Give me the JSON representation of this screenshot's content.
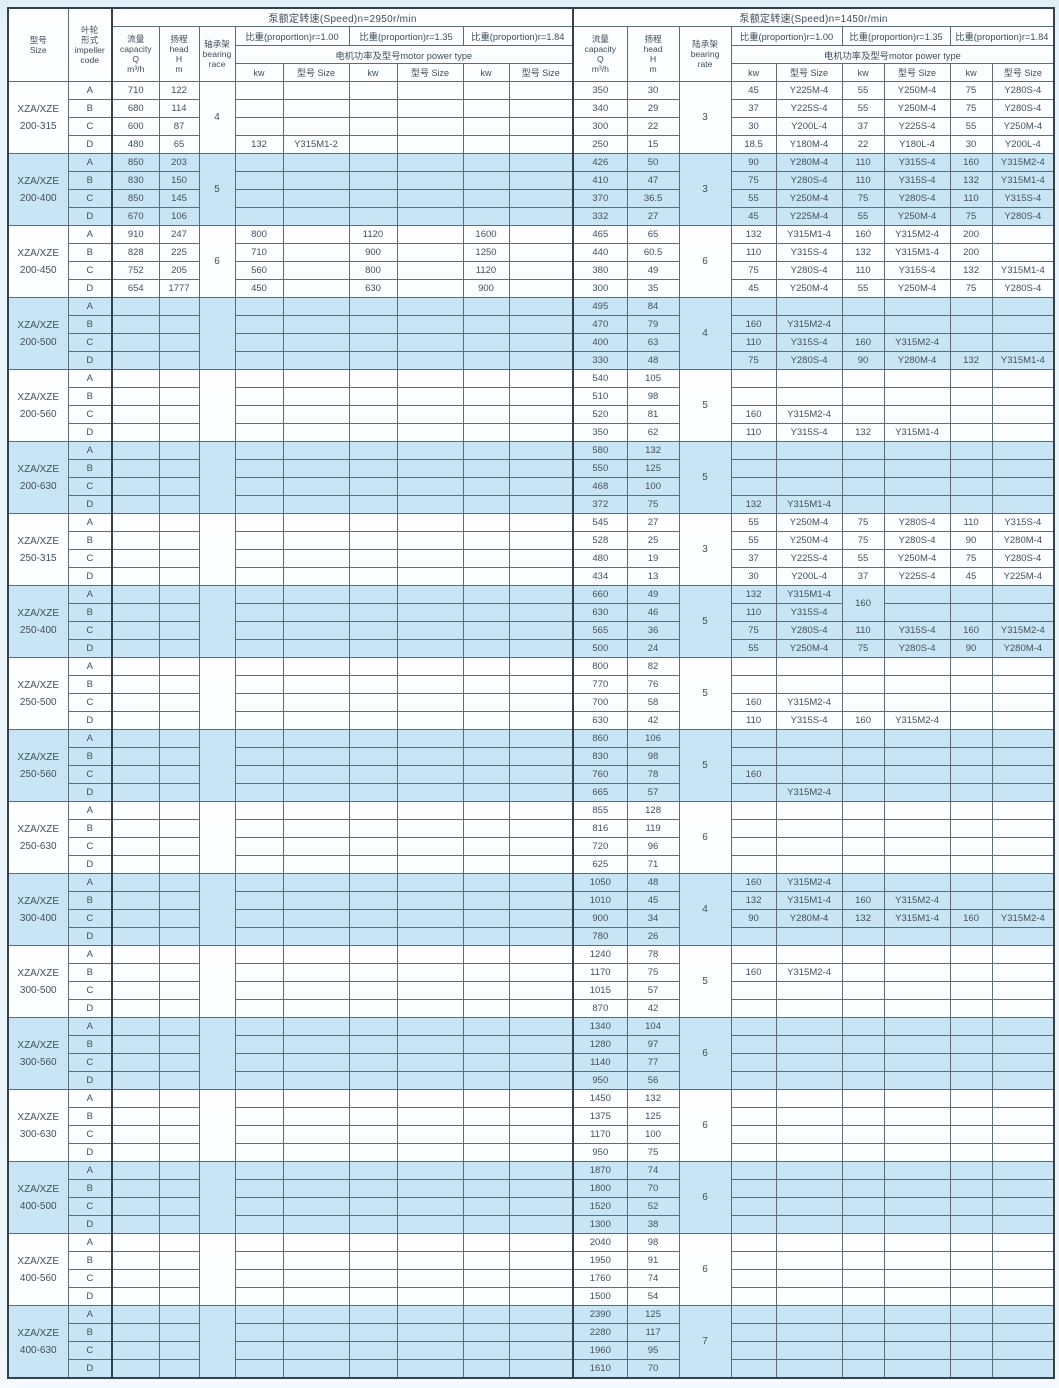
{
  "table": {
    "header": {
      "size_label": "型号\nSize",
      "impeller_label": "叶轮\n形式\nimpeller\ncode",
      "sections": [
        {
          "speed_title": "泵额定转速(Speed)n=2950r/min",
          "capacity_label": "流量\ncapacity\nQ\nm³/h",
          "head_label": "扬程\nhead\nH\nm",
          "bearing_label": "轴承架\nbearing\nrace",
          "proportions": [
            "比重(proportion)r=1.00",
            "比重(proportion)r=1.35",
            "比重(proportion)r=1.84"
          ],
          "motor_label": "电机功率及型号motor power type",
          "kw_label": "kw",
          "model_label": "型号 Size"
        },
        {
          "speed_title": "泵额定转速(Speed)n=1450r/min",
          "capacity_label": "流量\ncapacity\nQ\nm³/h",
          "head_label": "扬程\nhead\nH\nm",
          "bearing_label": "陆承架\nbearing\nrate",
          "proportions": [
            "比重(proportion)r=1.00",
            "比重(proportion)r=1.35",
            "比重(proportion)r=1.84"
          ],
          "motor_label": "电机功率及型号motor power type",
          "kw_label": "kw",
          "model_label": "型号 Size"
        }
      ]
    },
    "groups": [
      {
        "size": "XZA/XZE\n200-315",
        "hl": false,
        "lb": "4",
        "rb": "3",
        "rows": [
          [
            "A",
            "710",
            "122",
            [],
            "350",
            "30",
            [
              "45",
              "Y225M-4",
              "55",
              "Y250M-4",
              "75",
              "Y280S-4"
            ]
          ],
          [
            "B",
            "680",
            "114",
            [],
            "340",
            "29",
            [
              "37",
              "Y225S-4",
              "55",
              "Y250M-4",
              "75",
              "Y280S-4"
            ]
          ],
          [
            "C",
            "600",
            "87",
            [],
            "300",
            "22",
            [
              "30",
              "Y200L-4",
              "37",
              "Y225S-4",
              "55",
              "Y250M-4"
            ]
          ],
          [
            "D",
            "480",
            "65",
            [
              "132",
              "Y315M1-2",
              "",
              "",
              "",
              ""
            ],
            "250",
            "15",
            [
              "18.5",
              "Y180M-4",
              "22",
              "Y180L-4",
              "30",
              "Y200L-4"
            ]
          ]
        ]
      },
      {
        "size": "XZA/XZE\n200-400",
        "hl": true,
        "lb": "5",
        "rb": "3",
        "rows": [
          [
            "A",
            "850",
            "203",
            [],
            "426",
            "50",
            [
              "90",
              "Y280M-4",
              "110",
              "Y315S-4",
              "160",
              "Y315M2-4"
            ]
          ],
          [
            "B",
            "830",
            "150",
            [],
            "410",
            "47",
            [
              "75",
              "Y280S-4",
              "110",
              "Y315S-4",
              "132",
              "Y315M1-4"
            ]
          ],
          [
            "C",
            "850",
            "145",
            [],
            "370",
            "36.5",
            [
              "55",
              "Y250M-4",
              "75",
              "Y280S-4",
              "110",
              "Y315S-4"
            ]
          ],
          [
            "D",
            "670",
            "106",
            [],
            "332",
            "27",
            [
              "45",
              "Y225M-4",
              "55",
              "Y250M-4",
              "75",
              "Y280S-4"
            ]
          ]
        ]
      },
      {
        "size": "XZA/XZE\n200-450",
        "hl": false,
        "lb": "6",
        "rb": "6",
        "rows": [
          [
            "A",
            "910",
            "247",
            [
              "800",
              "",
              "1120",
              "",
              "1600",
              ""
            ],
            "465",
            "65",
            [
              "132",
              "Y315M1-4",
              "160",
              "Y315M2-4",
              "200",
              ""
            ]
          ],
          [
            "B",
            "828",
            "225",
            [
              "710",
              "",
              "900",
              "",
              "1250",
              ""
            ],
            "440",
            "60.5",
            [
              "110",
              "Y315S-4",
              "132",
              "Y315M1-4",
              "200",
              ""
            ]
          ],
          [
            "C",
            "752",
            "205",
            [
              "560",
              "",
              "800",
              "",
              "1120",
              ""
            ],
            "380",
            "49",
            [
              "75",
              "Y280S-4",
              "110",
              "Y315S-4",
              "132",
              "Y315M1-4"
            ]
          ],
          [
            "D",
            "654",
            "1777",
            [
              "450",
              "",
              "630",
              "",
              "900",
              ""
            ],
            "300",
            "35",
            [
              "45",
              "Y250M-4",
              "55",
              "Y250M-4",
              "75",
              "Y280S-4"
            ]
          ]
        ]
      },
      {
        "size": "XZA/XZE\n200-500",
        "hl": true,
        "lb": "",
        "rb": "4",
        "rows": [
          [
            "A",
            "",
            "",
            [],
            "495",
            "84",
            []
          ],
          [
            "B",
            "",
            "",
            [],
            "470",
            "79",
            [
              "160",
              "Y315M2-4",
              "",
              "",
              "",
              ""
            ]
          ],
          [
            "C",
            "",
            "",
            [],
            "400",
            "63",
            [
              "110",
              "Y315S-4",
              "160",
              "Y315M2-4",
              "",
              ""
            ]
          ],
          [
            "D",
            "",
            "",
            [],
            "330",
            "48",
            [
              "75",
              "Y280S-4",
              "90",
              "Y280M-4",
              "132",
              "Y315M1-4"
            ]
          ]
        ]
      },
      {
        "size": "XZA/XZE\n200-560",
        "hl": false,
        "lb": "",
        "rb": "5",
        "rows": [
          [
            "A",
            "",
            "",
            [],
            "540",
            "105",
            []
          ],
          [
            "B",
            "",
            "",
            [],
            "510",
            "98",
            []
          ],
          [
            "C",
            "",
            "",
            [],
            "520",
            "81",
            [
              "160",
              "Y315M2-4",
              "",
              "",
              "",
              ""
            ]
          ],
          [
            "D",
            "",
            "",
            [],
            "350",
            "62",
            [
              "110",
              "Y315S-4",
              "132",
              "Y315M1-4",
              "",
              ""
            ]
          ]
        ]
      },
      {
        "size": "XZA/XZE\n200-630",
        "hl": true,
        "lb": "",
        "rb": "5",
        "rows": [
          [
            "A",
            "",
            "",
            [],
            "580",
            "132",
            []
          ],
          [
            "B",
            "",
            "",
            [],
            "550",
            "125",
            []
          ],
          [
            "C",
            "",
            "",
            [],
            "468",
            "100",
            []
          ],
          [
            "D",
            "",
            "",
            [],
            "372",
            "75",
            [
              "132",
              "Y315M1-4",
              "",
              "",
              "",
              ""
            ]
          ]
        ]
      },
      {
        "size": "XZA/XZE\n250-315",
        "hl": false,
        "lb": "",
        "rb": "3",
        "rows": [
          [
            "A",
            "",
            "",
            [],
            "545",
            "27",
            [
              "55",
              "Y250M-4",
              "75",
              "Y280S-4",
              "110",
              "Y315S-4"
            ]
          ],
          [
            "B",
            "",
            "",
            [],
            "528",
            "25",
            [
              "55",
              "Y250M-4",
              "75",
              "Y280S-4",
              "90",
              "Y280M-4"
            ]
          ],
          [
            "C",
            "",
            "",
            [],
            "480",
            "19",
            [
              "37",
              "Y225S-4",
              "55",
              "Y250M-4",
              "75",
              "Y280S-4"
            ]
          ],
          [
            "D",
            "",
            "",
            [],
            "434",
            "13",
            [
              "30",
              "Y200L-4",
              "37",
              "Y225S-4",
              "45",
              "Y225M-4"
            ]
          ]
        ]
      },
      {
        "size": "XZA/XZE\n250-400",
        "hl": true,
        "lb": "",
        "rb": "5",
        "rows": [
          [
            "A",
            "",
            "",
            [],
            "660",
            "49",
            [
              "132",
              "Y315M1-4",
              {
                "t": "160",
                "rs": 2
              },
              "",
              "",
              ""
            ]
          ],
          [
            "B",
            "",
            "",
            [],
            "630",
            "46",
            [
              "110",
              "Y315S-4",
              null,
              "",
              "",
              ""
            ]
          ],
          [
            "C",
            "",
            "",
            [],
            "565",
            "36",
            [
              "75",
              "Y280S-4",
              "110",
              "Y315S-4",
              "160",
              "Y315M2-4"
            ]
          ],
          [
            "D",
            "",
            "",
            [],
            "500",
            "24",
            [
              "55",
              "Y250M-4",
              "75",
              "Y280S-4",
              "90",
              "Y280M-4"
            ]
          ]
        ]
      },
      {
        "size": "XZA/XZE\n250-500",
        "hl": false,
        "lb": "",
        "rb": "5",
        "rows": [
          [
            "A",
            "",
            "",
            [],
            "800",
            "82",
            []
          ],
          [
            "B",
            "",
            "",
            [],
            "770",
            "76",
            []
          ],
          [
            "C",
            "",
            "",
            [],
            "700",
            "58",
            [
              "160",
              "Y315M2-4",
              "",
              "",
              "",
              ""
            ]
          ],
          [
            "D",
            "",
            "",
            [],
            "630",
            "42",
            [
              "110",
              "Y315S-4",
              "160",
              "Y315M2-4",
              "",
              ""
            ]
          ]
        ]
      },
      {
        "size": "XZA/XZE\n250-560",
        "hl": true,
        "lb": "",
        "rb": "5",
        "rows": [
          [
            "A",
            "",
            "",
            [],
            "860",
            "106",
            []
          ],
          [
            "B",
            "",
            "",
            [],
            "830",
            "98",
            []
          ],
          [
            "C",
            "",
            "",
            [],
            "760",
            "78",
            [
              "160",
              "",
              "",
              "",
              "",
              ""
            ]
          ],
          [
            "D",
            "",
            "",
            [],
            "665",
            "57",
            [
              "",
              "Y315M2-4",
              "",
              "",
              "",
              ""
            ]
          ]
        ]
      },
      {
        "size": "XZA/XZE\n250-630",
        "hl": false,
        "lb": "",
        "rb": "6",
        "rows": [
          [
            "A",
            "",
            "",
            [],
            "855",
            "128",
            []
          ],
          [
            "B",
            "",
            "",
            [],
            "816",
            "119",
            []
          ],
          [
            "C",
            "",
            "",
            [],
            "720",
            "96",
            []
          ],
          [
            "D",
            "",
            "",
            [],
            "625",
            "71",
            []
          ]
        ]
      },
      {
        "size": "XZA/XZE\n300-400",
        "hl": true,
        "lb": "",
        "rb": "4",
        "rows": [
          [
            "A",
            "",
            "",
            [],
            "1050",
            "48",
            [
              "160",
              "Y315M2-4",
              "",
              "",
              "",
              ""
            ]
          ],
          [
            "B",
            "",
            "",
            [],
            "1010",
            "45",
            [
              "132",
              "Y315M1-4",
              "160",
              "Y315M2-4",
              "",
              ""
            ]
          ],
          [
            "C",
            "",
            "",
            [],
            "900",
            "34",
            [
              "90",
              "Y280M-4",
              "132",
              "Y315M1-4",
              "160",
              "Y315M2-4"
            ]
          ],
          [
            "D",
            "",
            "",
            [],
            "780",
            "26",
            []
          ]
        ]
      },
      {
        "size": "XZA/XZE\n300-500",
        "hl": false,
        "lb": "",
        "rb": "5",
        "rows": [
          [
            "A",
            "",
            "",
            [],
            "1240",
            "78",
            []
          ],
          [
            "B",
            "",
            "",
            [],
            "1170",
            "75",
            [
              "160",
              "Y315M2-4",
              "",
              "",
              "",
              ""
            ]
          ],
          [
            "C",
            "",
            "",
            [],
            "1015",
            "57",
            []
          ],
          [
            "D",
            "",
            "",
            [],
            "870",
            "42",
            []
          ]
        ]
      },
      {
        "size": "XZA/XZE\n300-560",
        "hl": true,
        "lb": "",
        "rb": "6",
        "rows": [
          [
            "A",
            "",
            "",
            [],
            "1340",
            "104",
            []
          ],
          [
            "B",
            "",
            "",
            [],
            "1280",
            "97",
            []
          ],
          [
            "C",
            "",
            "",
            [],
            "1140",
            "77",
            []
          ],
          [
            "D",
            "",
            "",
            [],
            "950",
            "56",
            []
          ]
        ]
      },
      {
        "size": "XZA/XZE\n300-630",
        "hl": false,
        "lb": "",
        "rb": "6",
        "rows": [
          [
            "A",
            "",
            "",
            [],
            "1450",
            "132",
            []
          ],
          [
            "B",
            "",
            "",
            [],
            "1375",
            "125",
            []
          ],
          [
            "C",
            "",
            "",
            [],
            "1170",
            "100",
            []
          ],
          [
            "D",
            "",
            "",
            [],
            "950",
            "75",
            []
          ]
        ]
      },
      {
        "size": "XZA/XZE\n400-500",
        "hl": true,
        "lb": "",
        "rb": "6",
        "rows": [
          [
            "A",
            "",
            "",
            [],
            "1870",
            "74",
            []
          ],
          [
            "B",
            "",
            "",
            [],
            "1800",
            "70",
            []
          ],
          [
            "C",
            "",
            "",
            [],
            "1520",
            "52",
            []
          ],
          [
            "D",
            "",
            "",
            [],
            "1300",
            "38",
            []
          ]
        ]
      },
      {
        "size": "XZA/XZE\n400-560",
        "hl": false,
        "lb": "",
        "rb": "6",
        "rows": [
          [
            "A",
            "",
            "",
            [],
            "2040",
            "98",
            []
          ],
          [
            "B",
            "",
            "",
            [],
            "1950",
            "91",
            []
          ],
          [
            "C",
            "",
            "",
            [],
            "1760",
            "74",
            []
          ],
          [
            "D",
            "",
            "",
            [],
            "1500",
            "54",
            []
          ]
        ]
      },
      {
        "size": "XZA/XZE\n400-630",
        "hl": true,
        "lb": "",
        "rb": "7",
        "rows": [
          [
            "A",
            "",
            "",
            [],
            "2390",
            "125",
            []
          ],
          [
            "B",
            "",
            "",
            [],
            "2280",
            "117",
            []
          ],
          [
            "C",
            "",
            "",
            [],
            "1960",
            "95",
            []
          ],
          [
            "D",
            "",
            "",
            [],
            "1610",
            "70",
            []
          ]
        ]
      }
    ]
  }
}
